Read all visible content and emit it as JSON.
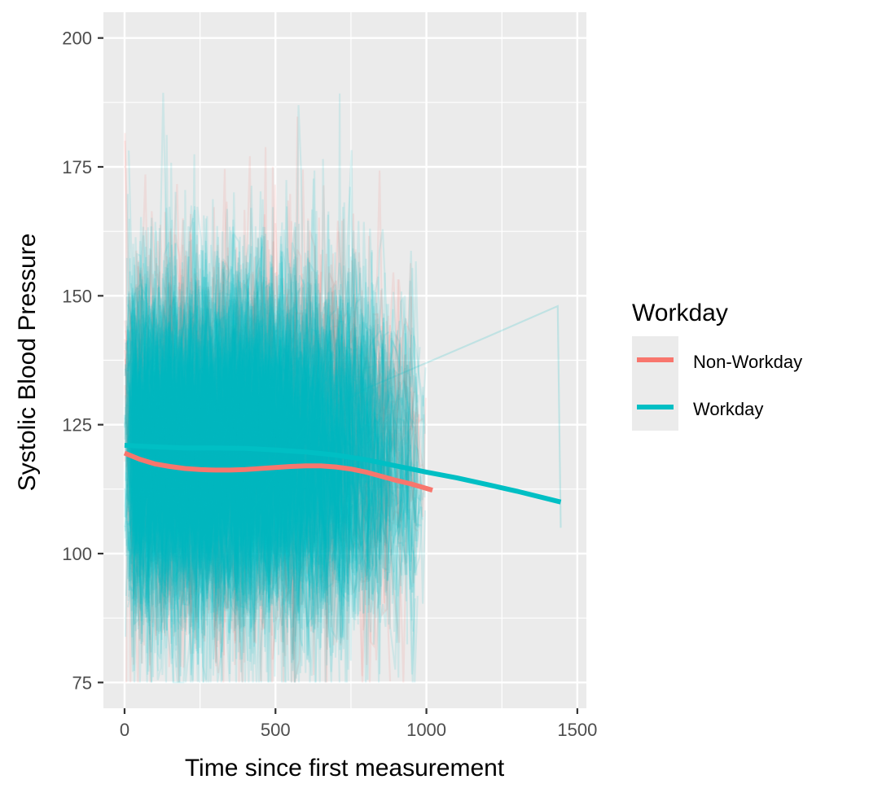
{
  "chart_data": {
    "type": "line",
    "title": "",
    "xlabel": "Time since first measurement",
    "ylabel": "Systolic Blood Pressure",
    "xlim": [
      -70,
      1530
    ],
    "ylim": [
      70,
      205
    ],
    "x_ticks": [
      0,
      500,
      1000,
      1500
    ],
    "y_ticks": [
      75,
      100,
      125,
      150,
      175,
      200
    ],
    "x_tick_labels": [
      "0",
      "500",
      "1000",
      "1500"
    ],
    "y_tick_labels": [
      "75",
      "100",
      "125",
      "150",
      "175",
      "200"
    ],
    "grid": true,
    "legend": {
      "title": "Workday",
      "placement": "right"
    },
    "series": [
      {
        "name": "Non-Workday",
        "color": "#F8766D",
        "smooth": {
          "x": [
            0,
            50,
            100,
            150,
            200,
            250,
            300,
            350,
            400,
            450,
            500,
            550,
            600,
            650,
            700,
            750,
            800,
            850,
            900,
            950,
            1020
          ],
          "y": [
            119.5,
            118.3,
            117.4,
            116.9,
            116.5,
            116.3,
            116.2,
            116.2,
            116.3,
            116.5,
            116.7,
            116.9,
            117.0,
            117.0,
            116.8,
            116.4,
            115.8,
            115.0,
            114.2,
            113.5,
            112.3
          ]
        }
      },
      {
        "name": "Workday",
        "color": "#00BFC4",
        "smooth": {
          "x": [
            0,
            100,
            200,
            300,
            400,
            500,
            600,
            700,
            800,
            900,
            1000,
            1100,
            1200,
            1300,
            1445
          ],
          "y": [
            121.0,
            120.7,
            120.5,
            120.5,
            120.4,
            120.1,
            119.7,
            119.1,
            118.2,
            117.0,
            115.8,
            114.7,
            113.4,
            112.1,
            110.0
          ]
        }
      }
    ]
  }
}
